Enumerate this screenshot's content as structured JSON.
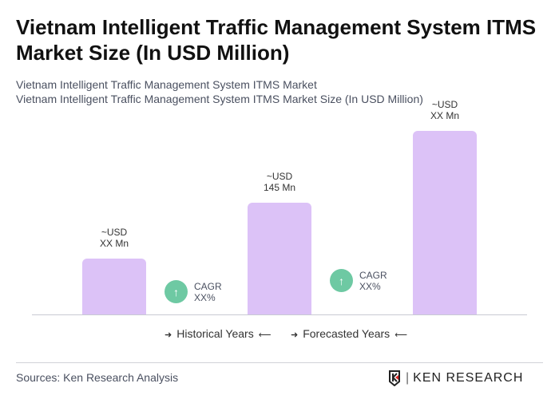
{
  "title": "Vietnam Intelligent Traffic Management System ITMS Market Size (In USD Million)",
  "subtitle1": "Vietnam Intelligent Traffic Management System ITMS Market",
  "subtitle2": "Vietnam Intelligent Traffic Management System ITMS Market Size (In USD Million)",
  "chart_data": {
    "type": "bar",
    "title": "Vietnam Intelligent Traffic Management System ITMS Market Size (In USD Million)",
    "categories": [
      "",
      "",
      ""
    ],
    "values": [
      72,
      145,
      238
    ],
    "data_labels": [
      [
        "~USD",
        "XX Mn"
      ],
      [
        "~USD",
        "145 Mn"
      ],
      [
        "~USD",
        "XX Mn"
      ]
    ],
    "bar_color": "#dcc2f7",
    "grid": false,
    "cagr": [
      {
        "label": "CAGR",
        "value": "XX%"
      },
      {
        "label": "CAGR",
        "value": "XX%"
      }
    ],
    "cagr_color": "#6ec9a3",
    "legend": [
      "Historical Years",
      "Forecasted Years"
    ]
  },
  "footer": {
    "sources": "Sources: Ken Research Analysis",
    "logo_text": "KEN RESEARCH"
  }
}
